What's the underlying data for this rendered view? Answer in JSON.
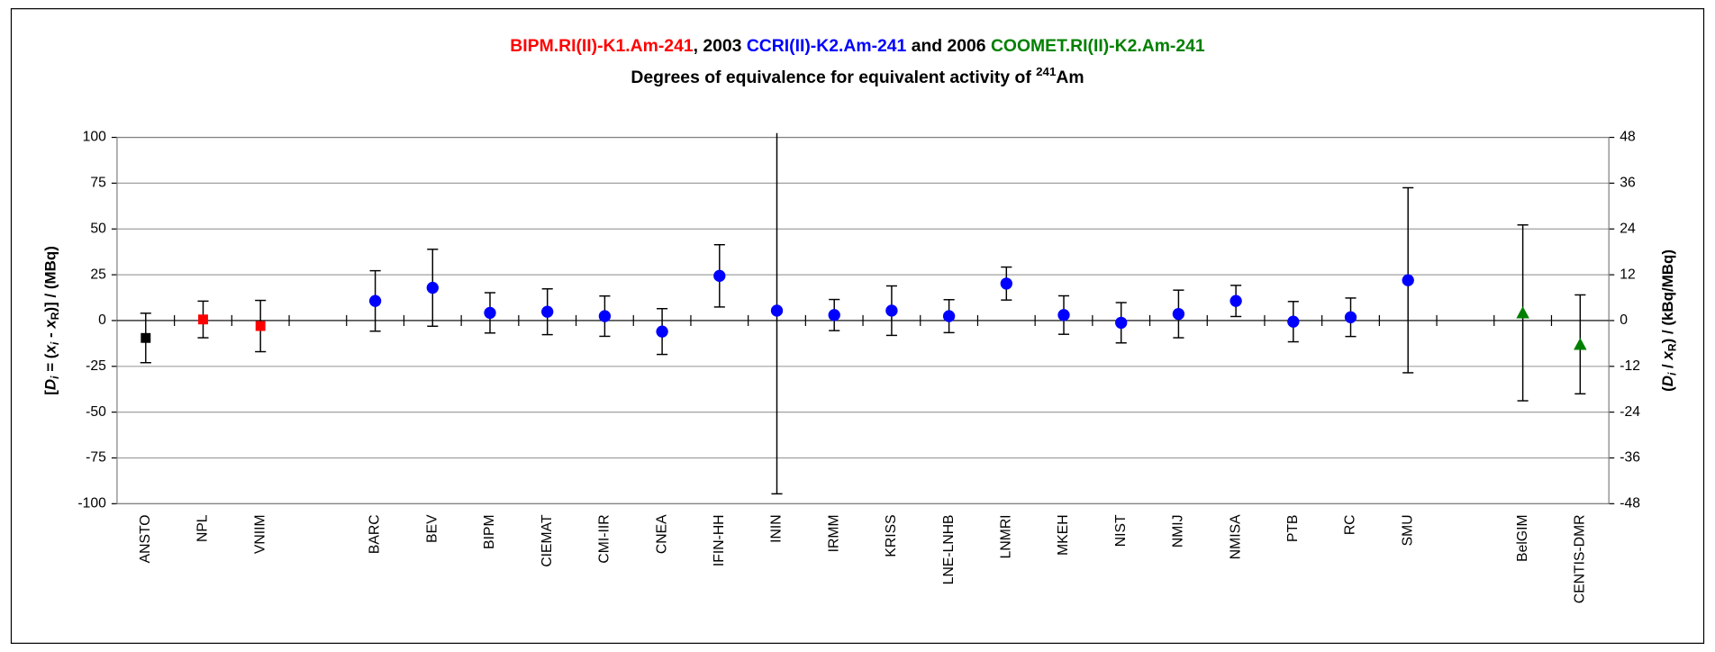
{
  "chart_data": {
    "type": "errorbar-scatter",
    "title": [
      "BIPM.RI(II)-K1.Am-241",
      ", 2003 ",
      "CCRI(II)-K2.Am-241",
      " and 2006 ",
      "COOMET.RI(II)-K2.Am-241"
    ],
    "title_colors": [
      "#ff0000",
      "#000000",
      "#0000ff",
      "#000000",
      "#008000"
    ],
    "subtitle": [
      "Degrees of equivalence for equivalent activity of ",
      "241",
      "Am"
    ],
    "y_label": [
      "[",
      "D",
      "i",
      " = (",
      "x",
      "i",
      " - ",
      "x",
      "R",
      ")] / (MBq)"
    ],
    "y2_label": [
      "(",
      "D",
      "i",
      " / ",
      "x",
      "R",
      ") / (kBq/MBq)"
    ],
    "categories": [
      "ANSTO",
      "NPL",
      "VNIIM",
      null,
      "BARC",
      "BEV",
      "BIPM",
      "CIEMAT",
      "CMI-IIR",
      "CNEA",
      "IFIN-HH",
      "ININ",
      "IRMM",
      "KRISS",
      "LNE-LNHB",
      "LNMRI",
      "MKEH",
      "NIST",
      "NMIJ",
      "NMISA",
      "PTB",
      "RC",
      "SMU",
      null,
      "BelGIM",
      "CENTIS-DMR"
    ],
    "series": [
      {
        "color": "#000000",
        "marker": "square",
        "values": [
          -9.5,
          null,
          null,
          null,
          null,
          null,
          null,
          null,
          null,
          null,
          null,
          null,
          null,
          null,
          null,
          null,
          null,
          null,
          null,
          null,
          null,
          null,
          null,
          null,
          null,
          null
        ],
        "errors": [
          13.5,
          null,
          null,
          null,
          null,
          null,
          null,
          null,
          null,
          null,
          null,
          null,
          null,
          null,
          null,
          null,
          null,
          null,
          null,
          null,
          null,
          null,
          null,
          null,
          null,
          null
        ]
      },
      {
        "color": "#ff0000",
        "marker": "square",
        "values": [
          null,
          0.6,
          -3,
          null,
          null,
          null,
          null,
          null,
          null,
          null,
          null,
          null,
          null,
          null,
          null,
          null,
          null,
          null,
          null,
          null,
          null,
          null,
          null,
          null,
          null,
          null
        ],
        "errors": [
          null,
          10,
          14,
          null,
          null,
          null,
          null,
          null,
          null,
          null,
          null,
          null,
          null,
          null,
          null,
          null,
          null,
          null,
          null,
          null,
          null,
          null,
          null,
          null,
          null,
          null
        ]
      },
      {
        "color": "#0000ff",
        "marker": "circle",
        "values": [
          null,
          null,
          null,
          null,
          10.7,
          17.9,
          4.2,
          4.8,
          2.4,
          -6,
          24.4,
          5.4,
          3,
          5.4,
          2.4,
          20.2,
          3,
          -1.2,
          3.6,
          10.7,
          -0.6,
          1.8,
          22,
          null,
          null,
          null
        ],
        "errors": [
          null,
          null,
          null,
          null,
          16.5,
          21,
          11,
          12.5,
          11,
          12.5,
          17,
          100,
          8.5,
          13.5,
          9,
          9,
          10.5,
          11,
          13,
          8.5,
          11,
          10.5,
          50.5,
          null,
          null,
          null
        ]
      },
      {
        "color": "#008000",
        "marker": "triangle",
        "values": [
          null,
          null,
          null,
          null,
          null,
          null,
          null,
          null,
          null,
          null,
          null,
          null,
          null,
          null,
          null,
          null,
          null,
          null,
          null,
          null,
          null,
          null,
          null,
          null,
          4.2,
          -13
        ],
        "errors": [
          null,
          null,
          null,
          null,
          null,
          null,
          null,
          null,
          null,
          null,
          null,
          null,
          null,
          null,
          null,
          null,
          null,
          null,
          null,
          null,
          null,
          null,
          null,
          null,
          48,
          27
        ]
      }
    ],
    "ylim": [
      -100,
      100
    ],
    "yticks": [
      -100,
      -75,
      -50,
      -25,
      0,
      25,
      50,
      75,
      100
    ],
    "y2lim": [
      -48,
      48
    ],
    "y2ticks": [
      -48,
      -36,
      -24,
      -12,
      0,
      12,
      24,
      36,
      48
    ],
    "grid": true
  }
}
